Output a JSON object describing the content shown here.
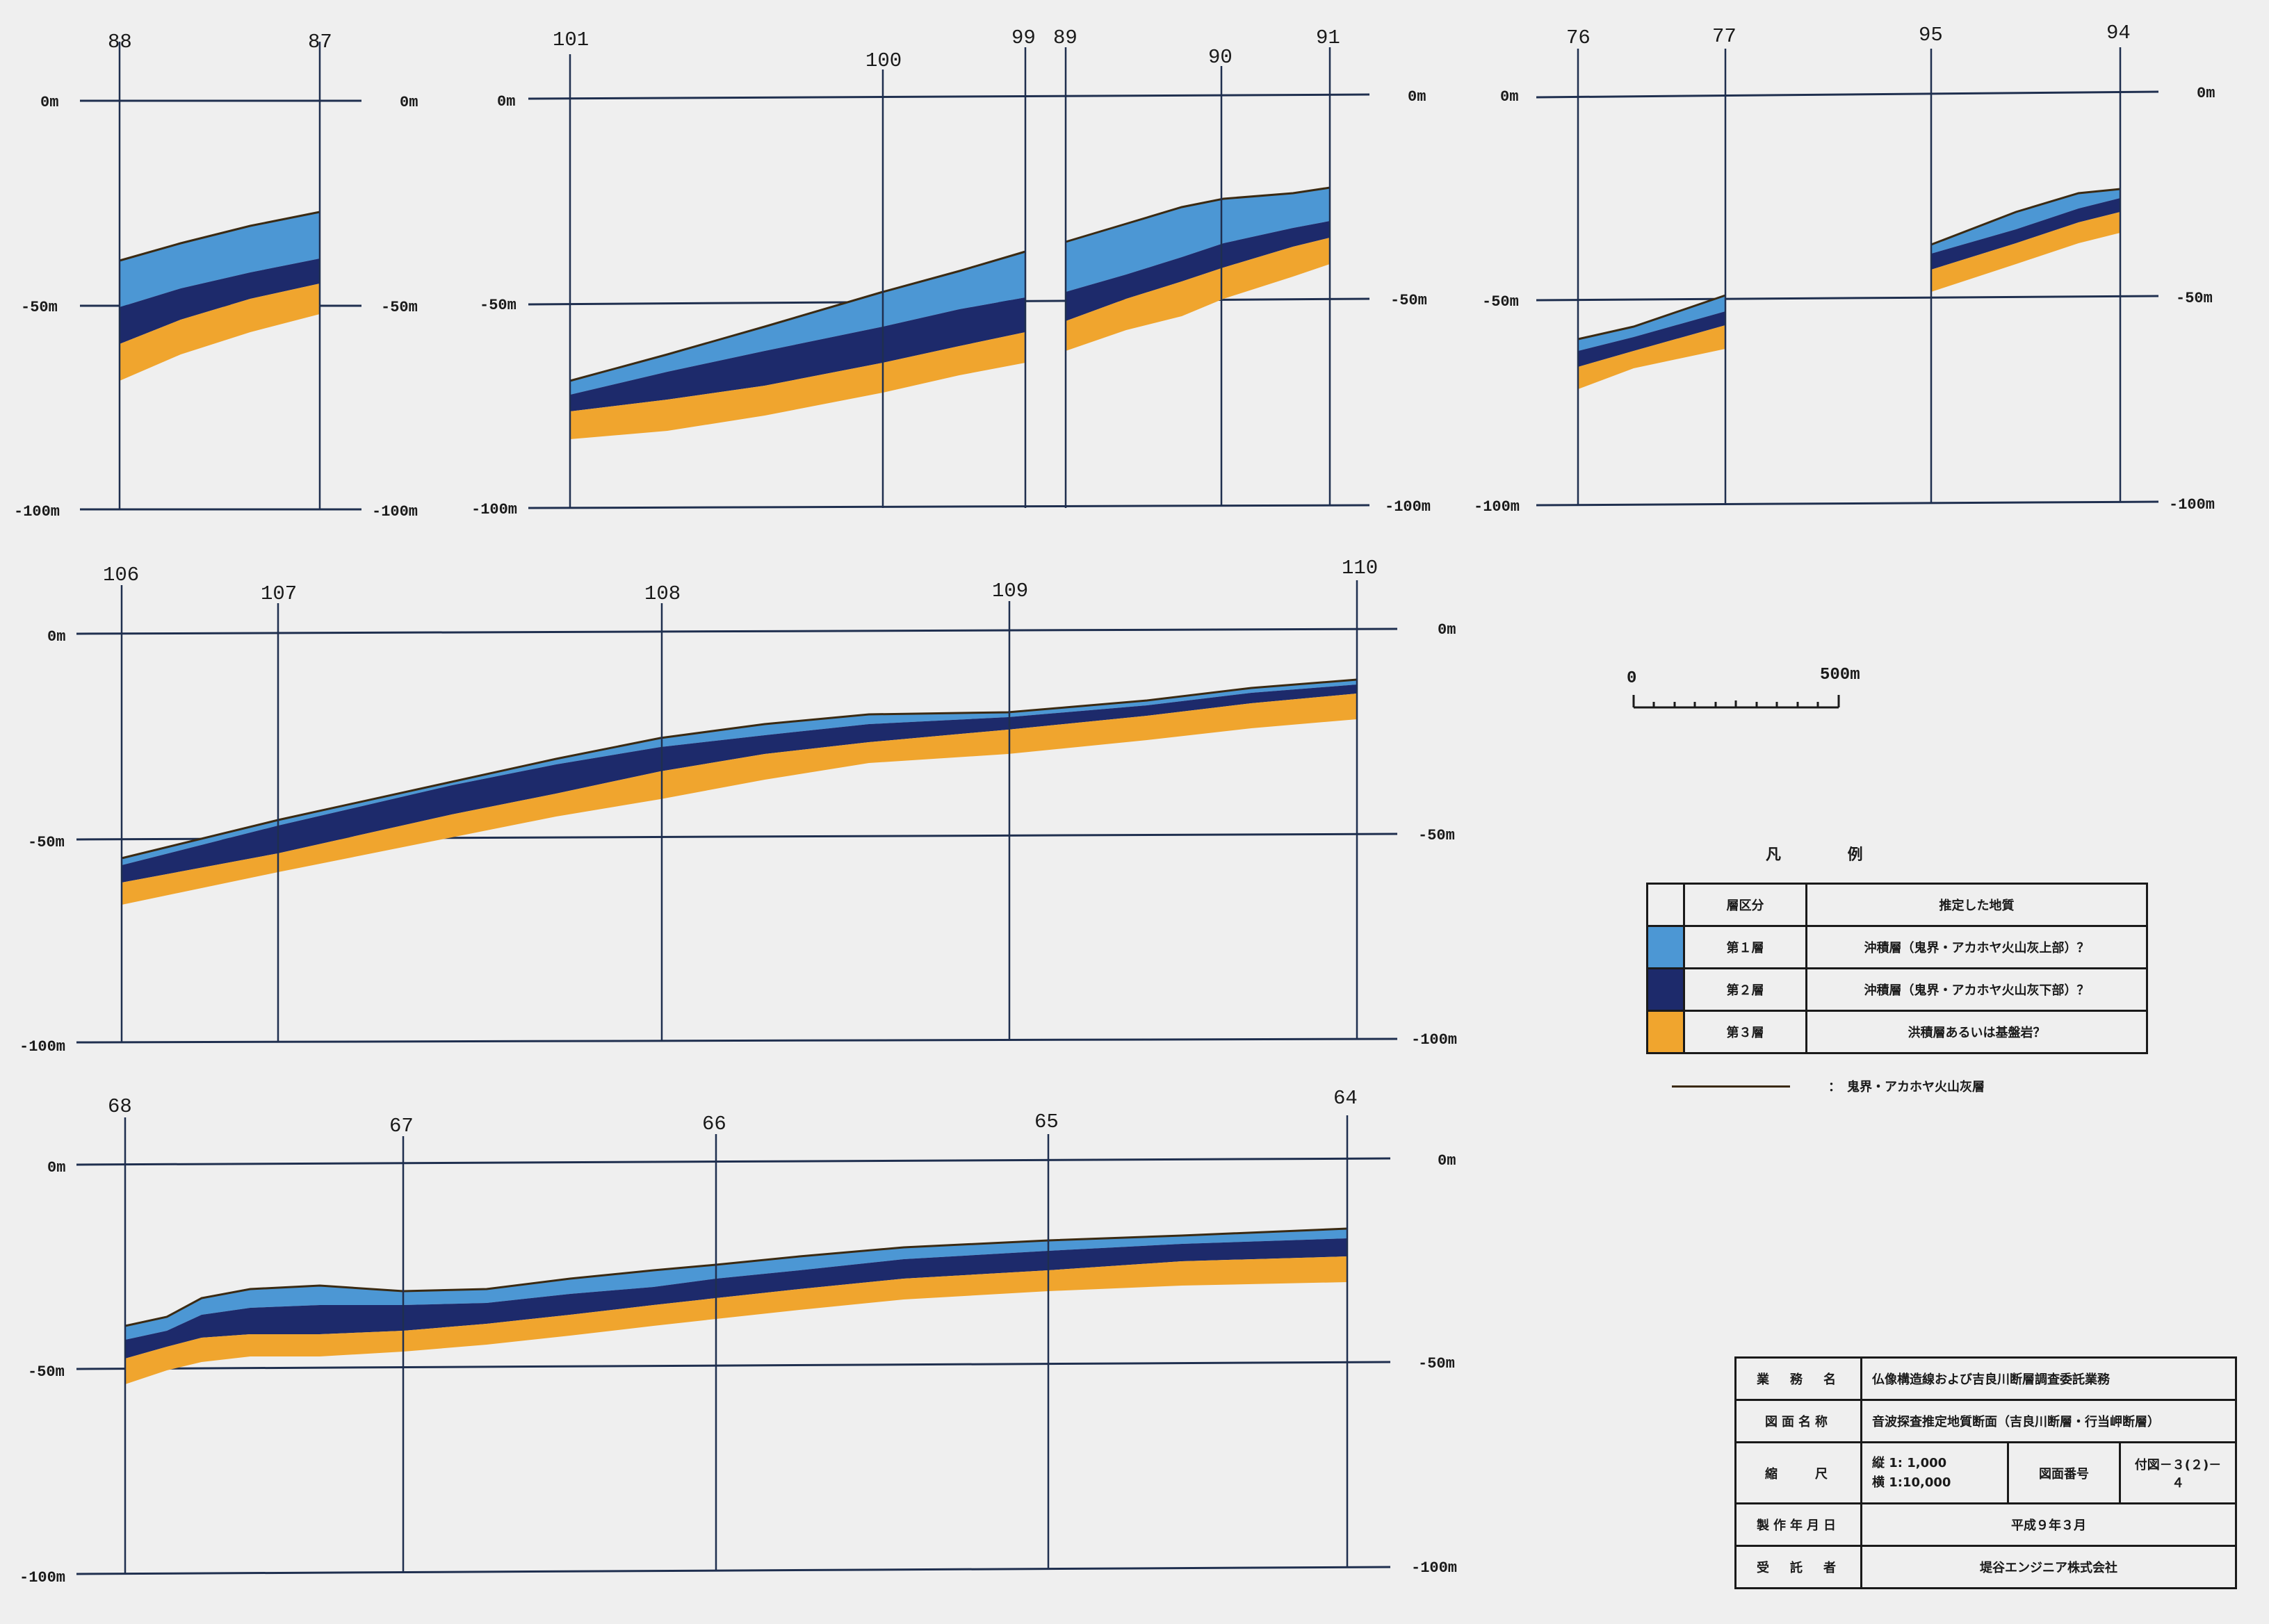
{
  "colors": {
    "layer1": "#4c97d4",
    "layer2": "#1d2a6b",
    "layer3": "#f0a52e",
    "boundary": "#3b2a12",
    "grid": "#1f2f4f"
  },
  "depth_labels": [
    "0m",
    "-50m",
    "-100m"
  ],
  "sections": [
    {
      "id": "88-87",
      "boreholes": [
        "88",
        "87"
      ]
    },
    {
      "id": "101-100-99",
      "boreholes": [
        "101",
        "100",
        "99"
      ]
    },
    {
      "id": "89-90-91",
      "boreholes": [
        "89",
        "90",
        "91"
      ]
    },
    {
      "id": "76-77",
      "boreholes": [
        "76",
        "77"
      ]
    },
    {
      "id": "95-94",
      "boreholes": [
        "95",
        "94"
      ]
    },
    {
      "id": "106-110",
      "boreholes": [
        "106",
        "107",
        "108",
        "109",
        "110"
      ]
    },
    {
      "id": "68-64",
      "boreholes": [
        "68",
        "67",
        "66",
        "65",
        "64"
      ]
    }
  ],
  "scale_bar": {
    "start": "0",
    "end": "500m"
  },
  "legend": {
    "title": "凡 例",
    "header_layer": "層区分",
    "header_geology": "推定した地質",
    "rows": [
      {
        "layer": "第１層",
        "description": "沖積層（鬼界・アカホヤ火山灰上部）？",
        "color": "#4c97d4"
      },
      {
        "layer": "第２層",
        "description": "沖積層（鬼界・アカホヤ火山灰下部）？",
        "color": "#1d2a6b"
      },
      {
        "layer": "第３層",
        "description": "洪積層あるいは基盤岩？",
        "color": "#f0a52e"
      }
    ],
    "boundary_label": "：　鬼界・アカホヤ火山灰層"
  },
  "title_block": {
    "project_label": "業　務　名",
    "project_name": "仏像構造線および吉良川断層調査委託業務",
    "drawing_label": "図面名称",
    "drawing_name": "音波探査推定地質断面（吉良川断層・行当岬断層）",
    "scale_label": "縮　　尺",
    "scale_vertical": "縦 1:  1,000",
    "scale_horizontal": "横 1:10,000",
    "number_label": "図面番号",
    "number_value": "付図－３(２)－４",
    "date_label": "製作年月日",
    "date_value": "平成９年３月",
    "contractor_label": "受　託　者",
    "contractor_value": "堤谷エンジニア株式会社"
  }
}
